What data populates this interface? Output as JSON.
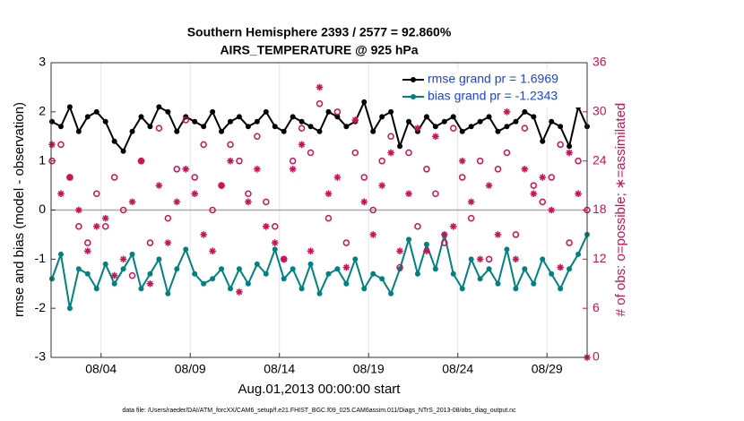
{
  "chart_data": {
    "type": "line",
    "title": "Southern Hemisphere 2393 / 2577 = 92.860%",
    "subtitle": "AIRS_TEMPERATURE @ 925 hPa",
    "y_label": "rmse and bias (model - observation)",
    "y2_label": "# of obs: o=possible; ∗=assimilated",
    "x_label": "Aug.01,2013 00:00:00 start",
    "footnote": "data file: /Users/raeder/DAI/ATM_forcXX/CAM6_setup/f.e21.FHIST_BGC.f09_025.CAM6assim.011/Diags_NTrS_2013-08/obs_diag_output.nc",
    "x": [
      0.25,
      0.75,
      1.25,
      1.75,
      2.25,
      2.75,
      3.25,
      3.75,
      4.25,
      4.75,
      5.25,
      5.75,
      6.25,
      6.75,
      7.25,
      7.75,
      8.25,
      8.75,
      9.25,
      9.75,
      10.25,
      10.75,
      11.25,
      11.75,
      12.25,
      12.75,
      13.25,
      13.75,
      14.25,
      14.75,
      15.25,
      15.75,
      16.25,
      16.75,
      17.25,
      17.75,
      18.25,
      18.75,
      19.25,
      19.75,
      20.25,
      20.75,
      21.25,
      21.75,
      22.25,
      22.75,
      23.25,
      23.75,
      24.25,
      24.75,
      25.25,
      25.75,
      26.25,
      26.75,
      27.25,
      27.75,
      28.25,
      28.75,
      29.25,
      29.75,
      30.25
    ],
    "xlim": [
      0.2,
      30.25
    ],
    "xticks": [
      {
        "value": 3,
        "label": "08/04"
      },
      {
        "value": 8,
        "label": "08/09"
      },
      {
        "value": 13,
        "label": "08/14"
      },
      {
        "value": 18,
        "label": "08/19"
      },
      {
        "value": 23,
        "label": "08/24"
      },
      {
        "value": 28,
        "label": "08/29"
      }
    ],
    "ylim": [
      -3,
      3
    ],
    "yticks": [
      -3,
      -2,
      -1,
      0,
      1,
      2,
      3
    ],
    "y2lim": [
      0,
      36
    ],
    "y2ticks": [
      0,
      6,
      12,
      18,
      24,
      30,
      36
    ],
    "grid": "x",
    "legend": "upper right",
    "y2_color": "#cc1155",
    "series": [
      {
        "name": "rmse grand pr = 1.6969",
        "color": "#000000",
        "marker": "dot",
        "values": [
          1.8,
          1.7,
          2.1,
          1.6,
          1.9,
          2.0,
          1.8,
          1.4,
          1.2,
          1.6,
          1.9,
          1.7,
          2.1,
          2.0,
          1.6,
          1.9,
          1.8,
          1.7,
          2.0,
          1.6,
          1.8,
          1.9,
          1.7,
          1.8,
          2.0,
          1.7,
          1.6,
          1.9,
          1.8,
          1.7,
          1.6,
          2.0,
          1.9,
          1.7,
          1.8,
          2.2,
          1.6,
          1.9,
          2.0,
          1.3,
          1.8,
          1.6,
          1.9,
          1.7,
          1.8,
          1.9,
          1.6,
          1.7,
          1.8,
          1.9,
          1.6,
          1.7,
          1.8,
          2.0,
          1.9,
          1.4,
          1.8,
          1.7,
          1.3,
          2.1,
          1.7
        ]
      },
      {
        "name": "bias grand pr = -1.2343",
        "color": "#008080",
        "marker": "dot",
        "values": [
          -1.4,
          -0.9,
          -2.0,
          -1.2,
          -1.3,
          -1.6,
          -1.1,
          -1.5,
          -1.2,
          -0.9,
          -1.6,
          -1.3,
          -1.0,
          -1.7,
          -1.2,
          -0.8,
          -1.3,
          -1.5,
          -1.4,
          -1.2,
          -1.6,
          -1.2,
          -1.5,
          -1.1,
          -1.3,
          -0.8,
          -1.4,
          -1.2,
          -1.6,
          -1.1,
          -1.7,
          -1.3,
          -1.2,
          -1.5,
          -1.0,
          -1.6,
          -1.3,
          -1.4,
          -1.7,
          -1.2,
          -0.6,
          -1.3,
          -0.7,
          -1.2,
          -0.5,
          -1.3,
          -1.6,
          -1.0,
          -1.4,
          -1.2,
          -1.5,
          -0.8,
          -1.6,
          -1.2,
          -1.5,
          -1.0,
          -1.3,
          -1.6,
          -1.2,
          -0.9,
          -0.5
        ]
      },
      {
        "color": "#cc1155",
        "marker": "o",
        "axis": "y2",
        "values": [
          24,
          26,
          22,
          16,
          14,
          20,
          16,
          22,
          18,
          10,
          24,
          14,
          28,
          17,
          23,
          29,
          22,
          26,
          18,
          21,
          26,
          24,
          20,
          27,
          19,
          16,
          12,
          24,
          28,
          25,
          31,
          17,
          30,
          14,
          25,
          22,
          18,
          24,
          27,
          11,
          25,
          16,
          23,
          20,
          14,
          28,
          22,
          17,
          24,
          12,
          23,
          25,
          15,
          28,
          21,
          19,
          22,
          26,
          14,
          24,
          18
        ]
      },
      {
        "color": "#cc1155",
        "marker": "*",
        "axis": "y2",
        "values": [
          26,
          20,
          22,
          18,
          13,
          16,
          17,
          10,
          12,
          19,
          24,
          9,
          21,
          14,
          19,
          23,
          20,
          15,
          13,
          21,
          24,
          8,
          19,
          23,
          16,
          14,
          12,
          23,
          26,
          13,
          33,
          20,
          22,
          11,
          29,
          19,
          15,
          21,
          25,
          13,
          20,
          28,
          13,
          27,
          15,
          16,
          24,
          19,
          12,
          21,
          15,
          30,
          12,
          23,
          20,
          22,
          18,
          11,
          25,
          20,
          0
        ]
      }
    ]
  }
}
